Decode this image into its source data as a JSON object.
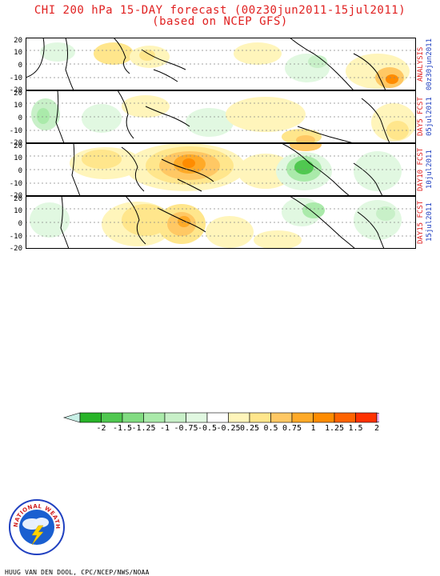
{
  "title": {
    "line1": "CHI 200 hPa 15-DAY forecast (00z30jun2011-15jul2011)",
    "line2": "(based on NCEP GFS)"
  },
  "y_ticks": [
    "20",
    "10",
    "0",
    "-10",
    "-20"
  ],
  "panels": [
    {
      "label": "ANALYSIS",
      "date": "00z30jun2011"
    },
    {
      "label": "DAY5 FCST",
      "date": "05jul2011"
    },
    {
      "label": "DAY10 FCST",
      "date": "10jul2011"
    },
    {
      "label": "DAY15 FCST",
      "date": "15jul2011"
    }
  ],
  "legend": {
    "ticks": [
      "-2",
      "-1.5",
      "-1.25",
      "-1",
      "-0.75",
      "-0.5",
      "-0.25",
      "0.25",
      "0.5",
      "0.75",
      "1",
      "1.25",
      "1.5",
      "2"
    ],
    "colors": [
      "#c8f0e6",
      "#28b428",
      "#50c850",
      "#82dc82",
      "#aaeaaa",
      "#c8f0c8",
      "#e1f8e1",
      "#ffffff",
      "#fff5bb",
      "#ffe68c",
      "#ffc864",
      "#ffaa28",
      "#ff8c00",
      "#ff6400",
      "#ff3200",
      "#f0b4f0"
    ]
  },
  "logo": {
    "text": "NATIONAL WEATHER SERVICE"
  },
  "credit": "HUUG VAN DEN DOOL, CPC/NCEP/NWS/NOAA"
}
